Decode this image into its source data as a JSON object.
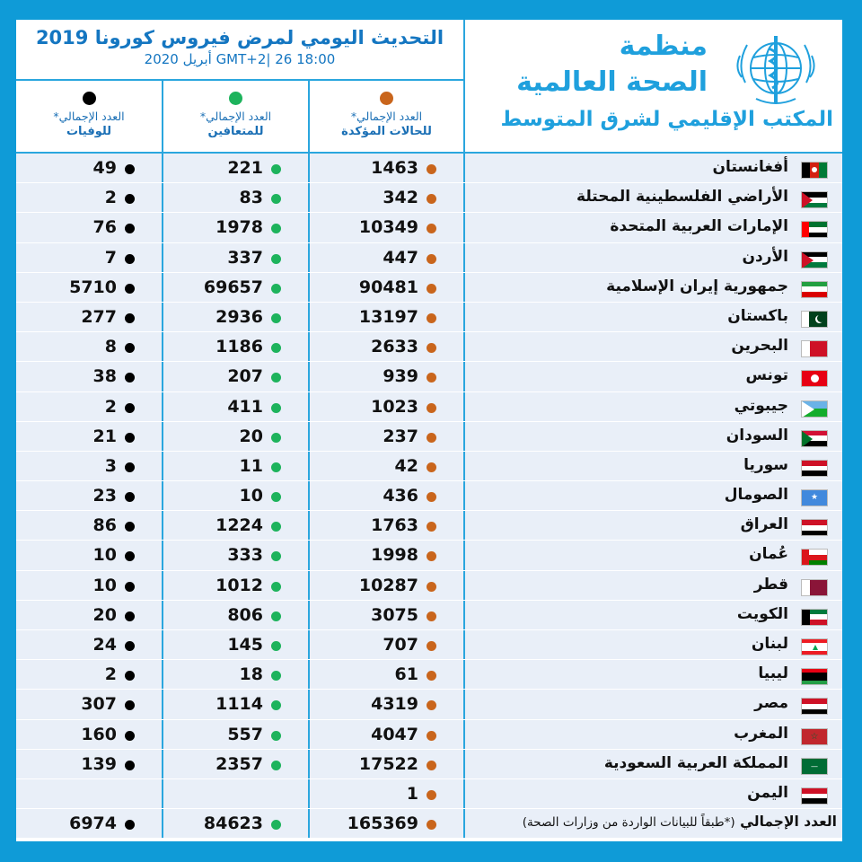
{
  "header": {
    "title": "التحديث اليومي لمرض فيروس كورونا 2019",
    "subtitle": "18:00   GMT+2|  26 أبريل 2020",
    "org_line1": "منظمة",
    "org_line2": "الصحة العالمية",
    "region": "المكتب الإقليمي لشرق المتوسط"
  },
  "columns": {
    "deaths": {
      "line1": "العدد الإجمالي*",
      "line2": "للوفيات",
      "dot_color": "#000000"
    },
    "recovered": {
      "line1": "العدد الإجمالي*",
      "line2": "للمتعافين",
      "dot_color": "#1db35c"
    },
    "cases": {
      "line1": "العدد الإجمالي*",
      "line2": "للحالات المؤكدة",
      "dot_color": "#c9651c"
    }
  },
  "colors": {
    "background": "#0f9bd7",
    "border": "#2aa6de",
    "title": "#1476c1",
    "who": "#1fa0dd",
    "row_bg": "#e9eff8"
  },
  "rows": [
    {
      "country": "أفغانستان",
      "flag": "afghanistan",
      "cases": "1463",
      "recovered": "221",
      "deaths": "49"
    },
    {
      "country": "الأراضي الفلسطينية المحتلة",
      "flag": "palestine",
      "cases": "342",
      "recovered": "83",
      "deaths": "2"
    },
    {
      "country": "الإمارات العربية المتحدة",
      "flag": "uae",
      "cases": "10349",
      "recovered": "1978",
      "deaths": "76"
    },
    {
      "country": "الأردن",
      "flag": "jordan",
      "cases": "447",
      "recovered": "337",
      "deaths": "7"
    },
    {
      "country": "جمهورية إيران الإسلامية",
      "flag": "iran",
      "cases": "90481",
      "recovered": "69657",
      "deaths": "5710"
    },
    {
      "country": "باكستان",
      "flag": "pakistan",
      "cases": "13197",
      "recovered": "2936",
      "deaths": "277"
    },
    {
      "country": "البحرين",
      "flag": "bahrain",
      "cases": "2633",
      "recovered": "1186",
      "deaths": "8"
    },
    {
      "country": "تونس",
      "flag": "tunisia",
      "cases": "939",
      "recovered": "207",
      "deaths": "38"
    },
    {
      "country": "جيبوتي",
      "flag": "djibouti",
      "cases": "1023",
      "recovered": "411",
      "deaths": "2"
    },
    {
      "country": "السودان",
      "flag": "sudan",
      "cases": "237",
      "recovered": "20",
      "deaths": "21"
    },
    {
      "country": "سوريا",
      "flag": "syria",
      "cases": "42",
      "recovered": "11",
      "deaths": "3"
    },
    {
      "country": "الصومال",
      "flag": "somalia",
      "cases": "436",
      "recovered": "10",
      "deaths": "23"
    },
    {
      "country": "العراق",
      "flag": "iraq",
      "cases": "1763",
      "recovered": "1224",
      "deaths": "86"
    },
    {
      "country": "عُمان",
      "flag": "oman",
      "cases": "1998",
      "recovered": "333",
      "deaths": "10"
    },
    {
      "country": "قطر",
      "flag": "qatar",
      "cases": "10287",
      "recovered": "1012",
      "deaths": "10"
    },
    {
      "country": "الكويت",
      "flag": "kuwait",
      "cases": "3075",
      "recovered": "806",
      "deaths": "20"
    },
    {
      "country": "لبنان",
      "flag": "lebanon",
      "cases": "707",
      "recovered": "145",
      "deaths": "24"
    },
    {
      "country": "ليبيا",
      "flag": "libya",
      "cases": "61",
      "recovered": "18",
      "deaths": "2"
    },
    {
      "country": "مصر",
      "flag": "egypt",
      "cases": "4319",
      "recovered": "1114",
      "deaths": "307"
    },
    {
      "country": "المغرب",
      "flag": "morocco",
      "cases": "4047",
      "recovered": "557",
      "deaths": "160"
    },
    {
      "country": "المملكة العربية السعودية",
      "flag": "saudi-arabia",
      "cases": "17522",
      "recovered": "2357",
      "deaths": "139"
    },
    {
      "country": "اليمن",
      "flag": "yemen",
      "cases": "1",
      "recovered": "",
      "deaths": ""
    }
  ],
  "total": {
    "label": "العدد الإجمالي",
    "note": "(*طبقاً للبيانات الواردة من وزارات الصحة)",
    "cases": "165369",
    "recovered": "84623",
    "deaths": "6974"
  }
}
